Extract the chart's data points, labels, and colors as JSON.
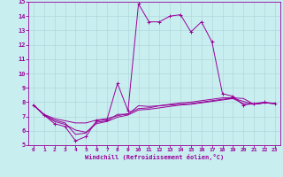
{
  "xlabel": "Windchill (Refroidissement éolien,°C)",
  "xlim": [
    -0.5,
    23.5
  ],
  "ylim": [
    5,
    15
  ],
  "xticks": [
    0,
    1,
    2,
    3,
    4,
    5,
    6,
    7,
    8,
    9,
    10,
    11,
    12,
    13,
    14,
    15,
    16,
    17,
    18,
    19,
    20,
    21,
    22,
    23
  ],
  "yticks": [
    5,
    6,
    7,
    8,
    9,
    10,
    11,
    12,
    13,
    14,
    15
  ],
  "bg_color": "#c8eef0",
  "line_color": "#990099",
  "grid_color": "#b0d8da",
  "line1_x": [
    0,
    1,
    2,
    3,
    4,
    5,
    6,
    7,
    8,
    9,
    10,
    11,
    12,
    13,
    14,
    15,
    16,
    17,
    18,
    19,
    20,
    21,
    22,
    23
  ],
  "line1_y": [
    7.8,
    7.1,
    6.5,
    6.3,
    5.3,
    5.6,
    6.7,
    6.8,
    9.3,
    7.4,
    14.85,
    13.6,
    13.6,
    14.0,
    14.1,
    12.9,
    13.6,
    12.2,
    8.6,
    8.4,
    7.8,
    7.9,
    8.0,
    7.9
  ],
  "line2_x": [
    0,
    1,
    2,
    3,
    4,
    5,
    6,
    7,
    8,
    9,
    10,
    11,
    12,
    13,
    14,
    15,
    16,
    17,
    18,
    19,
    20,
    21,
    22,
    23
  ],
  "line2_y": [
    7.8,
    7.15,
    6.85,
    6.7,
    6.55,
    6.55,
    6.75,
    6.85,
    7.05,
    7.2,
    7.55,
    7.6,
    7.75,
    7.85,
    7.95,
    8.0,
    8.1,
    8.2,
    8.3,
    8.3,
    8.25,
    7.85,
    7.95,
    7.9
  ],
  "line3_x": [
    0,
    1,
    2,
    3,
    4,
    5,
    6,
    7,
    8,
    9,
    10,
    11,
    12,
    13,
    14,
    15,
    16,
    17,
    18,
    19,
    20,
    21,
    22,
    23
  ],
  "line3_y": [
    7.8,
    7.1,
    6.65,
    6.45,
    6.05,
    5.9,
    6.5,
    6.65,
    6.95,
    7.1,
    7.45,
    7.5,
    7.6,
    7.7,
    7.8,
    7.85,
    7.95,
    8.05,
    8.15,
    8.25,
    7.9,
    7.85,
    7.95,
    7.9
  ],
  "line4_x": [
    0,
    1,
    2,
    3,
    4,
    5,
    6,
    7,
    8,
    9,
    10,
    11,
    12,
    13,
    14,
    15,
    16,
    17,
    18,
    19,
    20,
    21,
    22,
    23
  ],
  "line4_y": [
    7.8,
    7.1,
    6.75,
    6.55,
    5.75,
    5.85,
    6.6,
    6.7,
    7.15,
    7.15,
    7.75,
    7.7,
    7.75,
    7.8,
    7.85,
    7.9,
    8.0,
    8.1,
    8.2,
    8.27,
    8.05,
    7.85,
    7.95,
    7.9
  ]
}
